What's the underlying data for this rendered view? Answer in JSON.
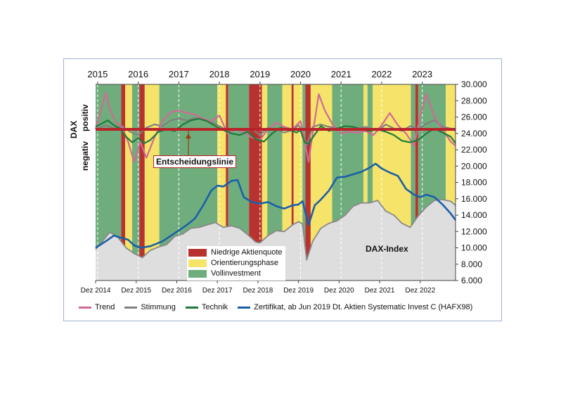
{
  "chart_data": {
    "type": "line",
    "top_axis_years": [
      "2015",
      "2016",
      "2017",
      "2018",
      "2019",
      "2020",
      "2021",
      "2022",
      "2023"
    ],
    "bottom_axis_labels": [
      "Dez 2014",
      "Dez 2015",
      "Dez 2016",
      "Dez 2017",
      "Dez 2018",
      "Dez 2019",
      "Dez 2020",
      "Dez 2021",
      "Dez 2022"
    ],
    "right_axis_ticks": [
      "30.000",
      "28.000",
      "26.000",
      "24.000",
      "22.000",
      "20.000",
      "18.000",
      "16.000",
      "14.000",
      "12.000",
      "10.000",
      "8.000",
      "6.000"
    ],
    "ylim": [
      6000,
      30000
    ],
    "xlim": [
      2014.95,
      2023.82
    ],
    "axis_label_dax": "DAX",
    "axis_label_positive": "positiv",
    "axis_label_negative": "negativ",
    "decision_line_label": "Entscheidungslinie",
    "decision_line_level": 24500,
    "dax_index_label": "DAX-Index",
    "phases_legend": [
      {
        "name": "Niedrige Aktienquote",
        "color": "#b8332f"
      },
      {
        "name": "Orientierungsphase",
        "color": "#f6e46a"
      },
      {
        "name": "Vollinvestment",
        "color": "#6fae7c"
      }
    ],
    "phases": [
      {
        "start": 2014.95,
        "end": 2015.58,
        "phase": "Vollinvestment"
      },
      {
        "start": 2015.58,
        "end": 2015.68,
        "phase": "Niedrige Aktienquote"
      },
      {
        "start": 2015.68,
        "end": 2015.85,
        "phase": "Orientierungsphase"
      },
      {
        "start": 2015.85,
        "end": 2016.03,
        "phase": "Vollinvestment"
      },
      {
        "start": 2016.03,
        "end": 2016.16,
        "phase": "Niedrige Aktienquote"
      },
      {
        "start": 2016.16,
        "end": 2016.52,
        "phase": "Orientierungsphase"
      },
      {
        "start": 2016.52,
        "end": 2017.95,
        "phase": "Vollinvestment"
      },
      {
        "start": 2017.95,
        "end": 2018.16,
        "phase": "Orientierungsphase"
      },
      {
        "start": 2018.16,
        "end": 2018.22,
        "phase": "Niedrige Aktienquote"
      },
      {
        "start": 2018.22,
        "end": 2018.73,
        "phase": "Vollinvestment"
      },
      {
        "start": 2018.73,
        "end": 2019.05,
        "phase": "Niedrige Aktienquote"
      },
      {
        "start": 2019.05,
        "end": 2019.18,
        "phase": "Orientierungsphase"
      },
      {
        "start": 2019.18,
        "end": 2019.55,
        "phase": "Vollinvestment"
      },
      {
        "start": 2019.55,
        "end": 2019.78,
        "phase": "Orientierungsphase"
      },
      {
        "start": 2019.78,
        "end": 2019.83,
        "phase": "Niedrige Aktienquote"
      },
      {
        "start": 2019.83,
        "end": 2020.05,
        "phase": "Orientierungsphase"
      },
      {
        "start": 2020.05,
        "end": 2020.12,
        "phase": "Vollinvestment"
      },
      {
        "start": 2020.12,
        "end": 2020.25,
        "phase": "Niedrige Aktienquote"
      },
      {
        "start": 2020.25,
        "end": 2020.78,
        "phase": "Orientierungsphase"
      },
      {
        "start": 2020.78,
        "end": 2021.55,
        "phase": "Vollinvestment"
      },
      {
        "start": 2021.55,
        "end": 2021.65,
        "phase": "Orientierungsphase"
      },
      {
        "start": 2021.65,
        "end": 2021.78,
        "phase": "Vollinvestment"
      },
      {
        "start": 2021.78,
        "end": 2022.72,
        "phase": "Orientierungsphase"
      },
      {
        "start": 2022.72,
        "end": 2022.83,
        "phase": "Vollinvestment"
      },
      {
        "start": 2022.83,
        "end": 2022.9,
        "phase": "Niedrige Aktienquote"
      },
      {
        "start": 2022.9,
        "end": 2023.58,
        "phase": "Vollinvestment"
      },
      {
        "start": 2023.58,
        "end": 2023.82,
        "phase": "Orientierungsphase"
      }
    ],
    "series": [
      {
        "name": "Trend",
        "color": "#d06a96",
        "x": [
          2014.95,
          2015.1,
          2015.2,
          2015.3,
          2015.45,
          2015.6,
          2015.75,
          2015.9,
          2016.05,
          2016.2,
          2016.4,
          2016.6,
          2016.8,
          2017.0,
          2017.2,
          2017.4,
          2017.6,
          2017.8,
          2018.0,
          2018.2,
          2018.4,
          2018.6,
          2018.8,
          2019.0,
          2019.2,
          2019.4,
          2019.6,
          2019.8,
          2020.0,
          2020.1,
          2020.2,
          2020.3,
          2020.45,
          2020.6,
          2020.8,
          2021.0,
          2021.2,
          2021.4,
          2021.6,
          2021.8,
          2022.0,
          2022.2,
          2022.4,
          2022.6,
          2022.8,
          2022.95,
          2023.1,
          2023.3,
          2023.5,
          2023.7,
          2023.82
        ],
        "values": [
          24500,
          27200,
          29000,
          27000,
          25300,
          24800,
          23000,
          20500,
          23000,
          21000,
          23500,
          25500,
          26600,
          26800,
          26500,
          26300,
          25800,
          25500,
          26200,
          24000,
          24500,
          24200,
          23500,
          23200,
          24500,
          25300,
          24800,
          24500,
          25500,
          23000,
          20500,
          24000,
          28800,
          26800,
          25000,
          24000,
          24200,
          24100,
          24300,
          23800,
          25000,
          26500,
          25000,
          24000,
          22500,
          26200,
          28800,
          26000,
          24500,
          23000,
          22500
        ]
      },
      {
        "name": "Stimmung",
        "color": "#808080",
        "x": [
          2014.95,
          2015.2,
          2015.4,
          2015.6,
          2015.8,
          2016.0,
          2016.2,
          2016.4,
          2016.6,
          2016.8,
          2017.0,
          2017.2,
          2017.4,
          2017.6,
          2017.8,
          2018.0,
          2018.2,
          2018.4,
          2018.6,
          2018.8,
          2019.0,
          2019.2,
          2019.4,
          2019.6,
          2019.8,
          2019.95,
          2020.05,
          2020.15,
          2020.3,
          2020.5,
          2020.7,
          2021.0,
          2021.3,
          2021.6,
          2021.9,
          2022.1,
          2022.3,
          2022.5,
          2022.7,
          2022.9,
          2023.1,
          2023.3,
          2023.5,
          2023.7,
          2023.82
        ],
        "values": [
          24500,
          25000,
          24600,
          24900,
          24200,
          23800,
          24700,
          25100,
          24900,
          25600,
          25800,
          25600,
          25900,
          25700,
          25400,
          24900,
          24300,
          24500,
          24200,
          24600,
          23800,
          24700,
          24500,
          24100,
          24400,
          25000,
          24300,
          22500,
          24800,
          25100,
          24800,
          24600,
          24500,
          24800,
          24300,
          25100,
          24600,
          24300,
          24900,
          24500,
          25200,
          25600,
          24800,
          24600,
          24300
        ]
      },
      {
        "name": "Technik",
        "color": "#1f7a3a",
        "x": [
          2014.95,
          2015.1,
          2015.25,
          2015.4,
          2015.55,
          2015.7,
          2015.85,
          2016.0,
          2016.15,
          2016.3,
          2016.5,
          2016.7,
          2016.9,
          2017.1,
          2017.3,
          2017.5,
          2017.7,
          2017.9,
          2018.1,
          2018.3,
          2018.5,
          2018.7,
          2018.9,
          2019.1,
          2019.3,
          2019.5,
          2019.7,
          2019.9,
          2020.0,
          2020.1,
          2020.2,
          2020.3,
          2020.5,
          2020.7,
          2020.9,
          2021.1,
          2021.3,
          2021.5,
          2021.7,
          2021.9,
          2022.1,
          2022.3,
          2022.5,
          2022.7,
          2022.9,
          2023.1,
          2023.3,
          2023.5,
          2023.7,
          2023.82
        ],
        "values": [
          24800,
          25200,
          25600,
          25000,
          24600,
          23600,
          22900,
          23400,
          22800,
          23200,
          24200,
          24500,
          24300,
          25100,
          25600,
          25800,
          25500,
          24900,
          24400,
          24000,
          23800,
          24200,
          23300,
          23000,
          24000,
          24700,
          24500,
          24100,
          24400,
          22900,
          22700,
          23500,
          24900,
          24300,
          24600,
          24900,
          24800,
          24500,
          24300,
          24500,
          24200,
          23800,
          23100,
          22900,
          23200,
          24000,
          24600,
          24100,
          23600,
          22800
        ]
      },
      {
        "name": "Zertifikat, ab Jun 2019 Dt. Aktien Systematic Invest C (HAFX98)",
        "color": "#1b5fa8",
        "x": [
          2014.95,
          2015.2,
          2015.4,
          2015.6,
          2015.75,
          2015.9,
          2016.05,
          2016.3,
          2016.6,
          2016.9,
          2017.2,
          2017.4,
          2017.6,
          2017.8,
          2017.95,
          2018.1,
          2018.3,
          2018.45,
          2018.6,
          2018.8,
          2019.0,
          2019.2,
          2019.4,
          2019.6,
          2019.8,
          2019.95,
          2020.05,
          2020.2,
          2020.35,
          2020.5,
          2020.7,
          2020.9,
          2021.1,
          2021.3,
          2021.5,
          2021.7,
          2021.85,
          2022.0,
          2022.2,
          2022.4,
          2022.6,
          2022.8,
          2022.95,
          2023.1,
          2023.3,
          2023.5,
          2023.7,
          2023.82
        ],
        "values": [
          10000,
          10800,
          11500,
          11200,
          11000,
          10300,
          10000,
          10200,
          10800,
          11800,
          12800,
          13600,
          15200,
          17000,
          17600,
          17500,
          18200,
          18300,
          16200,
          15600,
          15400,
          15600,
          15100,
          14800,
          15200,
          15300,
          15700,
          12800,
          15200,
          15900,
          17000,
          18600,
          18700,
          19000,
          19300,
          19800,
          20300,
          19700,
          19200,
          18800,
          17200,
          16500,
          16200,
          16500,
          16200,
          15300,
          14200,
          13400
        ]
      },
      {
        "name": "DAX-Index",
        "color": "#888888",
        "x": [
          2014.95,
          2015.15,
          2015.3,
          2015.5,
          2015.7,
          2015.9,
          2016.1,
          2016.3,
          2016.5,
          2016.7,
          2016.9,
          2017.1,
          2017.3,
          2017.5,
          2017.7,
          2017.9,
          2018.1,
          2018.3,
          2018.5,
          2018.7,
          2018.9,
          2019.0,
          2019.2,
          2019.4,
          2019.6,
          2019.8,
          2019.95,
          2020.05,
          2020.15,
          2020.3,
          2020.5,
          2020.7,
          2020.9,
          2021.1,
          2021.3,
          2021.5,
          2021.7,
          2021.9,
          2022.1,
          2022.3,
          2022.5,
          2022.7,
          2022.9,
          2023.1,
          2023.3,
          2023.5,
          2023.7,
          2023.82
        ],
        "values": [
          9800,
          11000,
          11900,
          11300,
          10000,
          9300,
          8800,
          9700,
          10100,
          10400,
          11400,
          11700,
          12400,
          12500,
          12800,
          13100,
          12500,
          12700,
          12400,
          11600,
          10700,
          10600,
          11500,
          12100,
          12000,
          12800,
          13200,
          12900,
          8500,
          10800,
          12400,
          13000,
          13300,
          14000,
          15100,
          15500,
          15500,
          15800,
          14500,
          14000,
          13000,
          12500,
          13900,
          15000,
          15800,
          15900,
          15700,
          15200
        ]
      }
    ]
  },
  "legend_bottom": [
    "Trend",
    "Stimmung",
    "Technik",
    "Zertifikat, ab Jun 2019 Dt. Aktien Systematic Invest C (HAFX98)"
  ],
  "colors": {
    "frame": "#9fb2cf",
    "decision_line": "#b8232a",
    "grid_dash": "#ffffff"
  }
}
